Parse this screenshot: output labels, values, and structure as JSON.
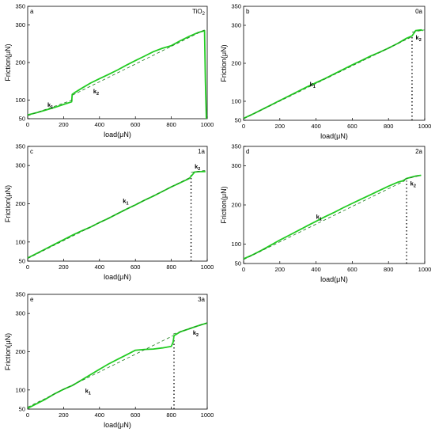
{
  "chart_data": [
    {
      "type": "line",
      "panel_letter": "a",
      "sample_label": "TiO",
      "sample_label_sub": "2",
      "xlabel": "load(μN)",
      "ylabel": "Friction(μN)",
      "xlim": [
        0,
        1000
      ],
      "ylim": [
        50,
        350
      ],
      "x_ticks": [
        0,
        200,
        400,
        600,
        800,
        1000
      ],
      "y_ticks": [
        50,
        100,
        200,
        300,
        350
      ],
      "series_color": "#22cc22",
      "fit_color": "#1a7a1a",
      "series": [
        {
          "x": [
            0,
            50,
            100,
            150,
            200,
            245,
            248,
            260,
            300,
            350,
            400,
            450,
            500,
            550,
            600,
            650,
            700,
            750,
            800,
            850,
            900,
            950,
            985,
            990,
            995
          ],
          "y": [
            60,
            66,
            73,
            80,
            88,
            95,
            115,
            119,
            131,
            145,
            157,
            168,
            180,
            193,
            205,
            217,
            229,
            238,
            245,
            258,
            270,
            280,
            285,
            150,
            50
          ]
        }
      ],
      "fits": [
        {
          "x": [
            0,
            250
          ],
          "y": [
            58,
            100
          ]
        },
        {
          "x": [
            250,
            985
          ],
          "y": [
            113,
            287
          ]
        }
      ],
      "breakpoint": null,
      "k_labels": [
        {
          "text": "k",
          "sub": "1",
          "x": 110,
          "y": 82
        },
        {
          "text": "k",
          "sub": "2",
          "x": 365,
          "y": 118
        }
      ]
    },
    {
      "type": "line",
      "panel_letter": "b",
      "sample_label": "0a",
      "xlabel": "load(μN)",
      "ylabel": "Friction(μN)",
      "xlim": [
        0,
        1000
      ],
      "ylim": [
        50,
        350
      ],
      "x_ticks": [
        0,
        200,
        400,
        600,
        800,
        1000
      ],
      "y_ticks": [
        50,
        100,
        200,
        300,
        350
      ],
      "series_color": "#22cc22",
      "fit_color": "#1a7a1a",
      "series": [
        {
          "x": [
            0,
            50,
            100,
            150,
            200,
            250,
            300,
            350,
            400,
            450,
            500,
            550,
            600,
            650,
            700,
            750,
            800,
            850,
            900,
            930,
            950,
            980,
            990
          ],
          "y": [
            55,
            66,
            78,
            90,
            102,
            114,
            126,
            138,
            149,
            160,
            172,
            184,
            196,
            207,
            219,
            229,
            240,
            252,
            266,
            272,
            286,
            288,
            286
          ]
        }
      ],
      "fits": [
        {
          "x": [
            0,
            930
          ],
          "y": [
            54,
            270
          ]
        },
        {
          "x": [
            930,
            1000
          ],
          "y": [
            282,
            288
          ]
        }
      ],
      "breakpoint": {
        "x": 930,
        "y_from": 50,
        "y_to": 270
      },
      "k_labels": [
        {
          "text": "k",
          "sub": "1",
          "x": 365,
          "y": 140
        },
        {
          "text": "k",
          "sub": "2",
          "x": 950,
          "y": 262
        }
      ]
    },
    {
      "type": "line",
      "panel_letter": "c",
      "sample_label": "1a",
      "xlabel": "load(μN)",
      "ylabel": "Friction(μN)",
      "xlim": [
        0,
        1000
      ],
      "ylim": [
        50,
        350
      ],
      "x_ticks": [
        0,
        200,
        400,
        600,
        800,
        1000
      ],
      "y_ticks": [
        50,
        100,
        200,
        300,
        350
      ],
      "series_color": "#22cc22",
      "fit_color": "#1a7a1a",
      "series": [
        {
          "x": [
            0,
            50,
            100,
            150,
            200,
            250,
            300,
            350,
            400,
            450,
            500,
            550,
            600,
            650,
            700,
            750,
            800,
            850,
            900,
            930,
            960,
            990
          ],
          "y": [
            58,
            70,
            82,
            94,
            106,
            118,
            129,
            139,
            151,
            162,
            174,
            186,
            197,
            209,
            220,
            232,
            244,
            255,
            266,
            283,
            284,
            284
          ]
        }
      ],
      "fits": [
        {
          "x": [
            0,
            910
          ],
          "y": [
            57,
            270
          ]
        },
        {
          "x": [
            910,
            1000
          ],
          "y": [
            282,
            288
          ]
        }
      ],
      "breakpoint": {
        "x": 910,
        "y_from": 50,
        "y_to": 275
      },
      "k_labels": [
        {
          "text": "k",
          "sub": "1",
          "x": 530,
          "y": 202
        },
        {
          "text": "k",
          "sub": "2",
          "x": 930,
          "y": 292
        }
      ]
    },
    {
      "type": "line",
      "panel_letter": "d",
      "sample_label": "2a",
      "xlabel": "load(μN)",
      "ylabel": "Friction(μN)",
      "xlim": [
        0,
        1000
      ],
      "ylim": [
        50,
        350
      ],
      "x_ticks": [
        0,
        200,
        400,
        600,
        800,
        1000
      ],
      "y_ticks": [
        50,
        100,
        200,
        300,
        350
      ],
      "series_color": "#22cc22",
      "fit_color": "#1a7a1a",
      "series": [
        {
          "x": [
            0,
            50,
            100,
            150,
            200,
            250,
            300,
            350,
            400,
            450,
            500,
            550,
            600,
            650,
            700,
            750,
            800,
            850,
            880,
            900,
            950,
            980
          ],
          "y": [
            62,
            72,
            84,
            97,
            110,
            122,
            134,
            146,
            158,
            170,
            181,
            193,
            204,
            215,
            226,
            237,
            248,
            258,
            262,
            268,
            274,
            276
          ]
        }
      ],
      "fits": [
        {
          "x": [
            0,
            890
          ],
          "y": [
            60,
            262
          ]
        },
        {
          "x": [
            890,
            980
          ],
          "y": [
            266,
            276
          ]
        }
      ],
      "breakpoint": {
        "x": 900,
        "y_from": 50,
        "y_to": 262
      },
      "k_labels": [
        {
          "text": "k",
          "sub": "1",
          "x": 400,
          "y": 165
        },
        {
          "text": "k",
          "sub": "2",
          "x": 920,
          "y": 250
        }
      ]
    },
    {
      "type": "line",
      "panel_letter": "e",
      "sample_label": "3a",
      "xlabel": "load(μN)",
      "ylabel": "Friction(μN)",
      "xlim": [
        0,
        1000
      ],
      "ylim": [
        50,
        350
      ],
      "x_ticks": [
        0,
        200,
        400,
        600,
        800,
        1000
      ],
      "y_ticks": [
        50,
        100,
        200,
        300,
        350
      ],
      "series_color": "#22cc22",
      "fit_color": "#1a7a1a",
      "series": [
        {
          "x": [
            0,
            50,
            100,
            150,
            200,
            250,
            300,
            350,
            400,
            450,
            500,
            550,
            600,
            650,
            700,
            750,
            800,
            810,
            815,
            850,
            900,
            950,
            1000
          ],
          "y": [
            52,
            64,
            76,
            90,
            102,
            112,
            126,
            140,
            154,
            168,
            180,
            192,
            204,
            206,
            207,
            210,
            214,
            225,
            242,
            252,
            260,
            268,
            275
          ]
        }
      ],
      "fits": [
        {
          "x": [
            0,
            810
          ],
          "y": [
            55,
            242
          ]
        },
        {
          "x": [
            810,
            1000
          ],
          "y": [
            246,
            276
          ]
        }
      ],
      "breakpoint": {
        "x": 815,
        "y_from": 50,
        "y_to": 232
      },
      "k_labels": [
        {
          "text": "k",
          "sub": "1",
          "x": 320,
          "y": 92
        },
        {
          "text": "k",
          "sub": "2",
          "x": 920,
          "y": 245
        }
      ]
    }
  ]
}
